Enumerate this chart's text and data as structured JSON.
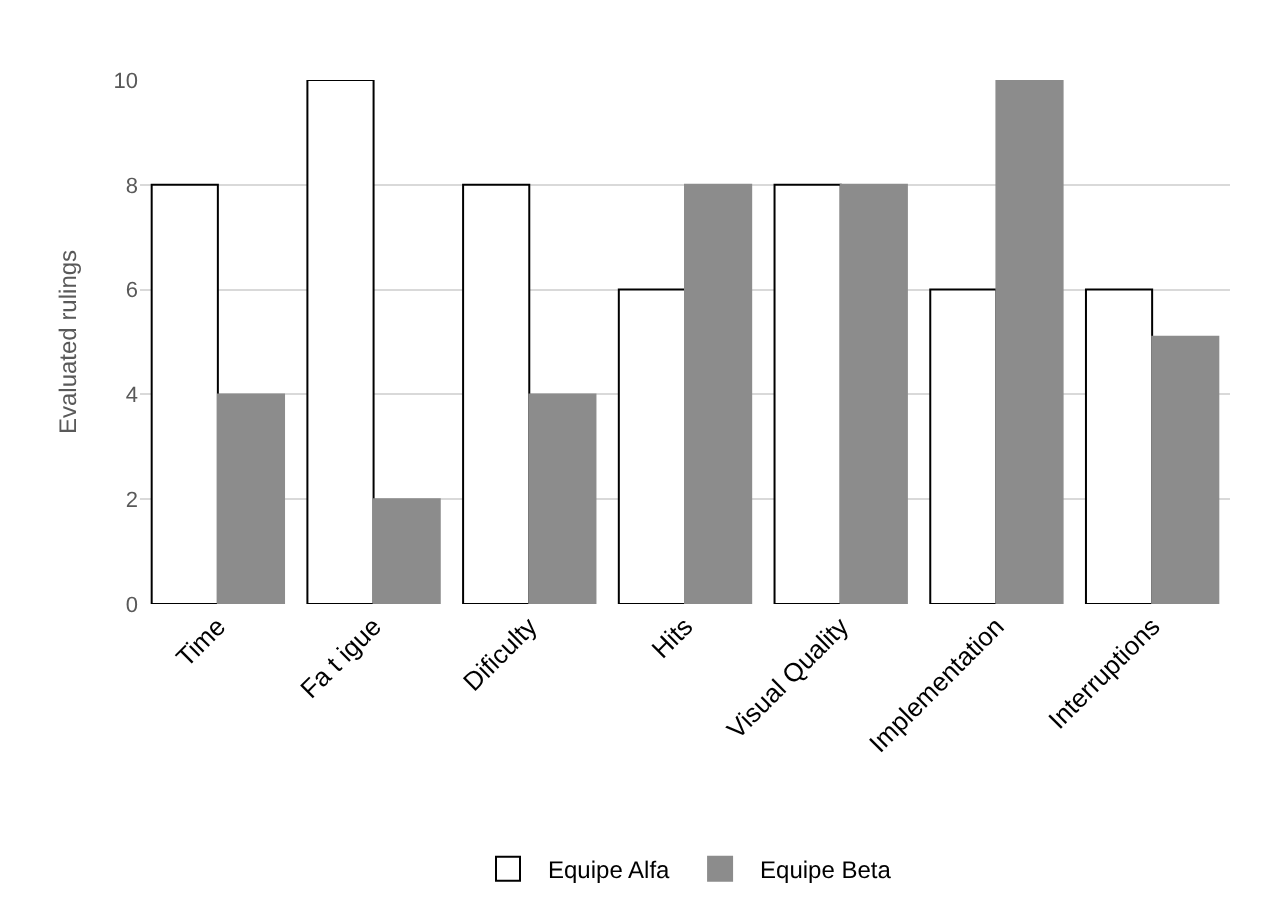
{
  "chart_data": {
    "type": "bar",
    "ylabel": "Evaluated rulings",
    "categories": [
      "Time",
      "Fa t igue",
      "Dificulty",
      "Hits",
      "Visual Quality",
      "Implementation",
      "Interruptions"
    ],
    "series": [
      {
        "name": "Equipe Alfa",
        "color": "#ffffff",
        "values": [
          8,
          10,
          8,
          6,
          8,
          6,
          6
        ]
      },
      {
        "name": "Equipe Beta",
        "color": "#8c8c8c",
        "values": [
          4,
          2,
          4,
          8,
          8,
          10,
          5.1
        ]
      }
    ],
    "ylim": [
      0,
      10
    ],
    "yticks": [
      0,
      2,
      4,
      6,
      8,
      10
    ],
    "grid": "y",
    "legend": "bottom"
  }
}
